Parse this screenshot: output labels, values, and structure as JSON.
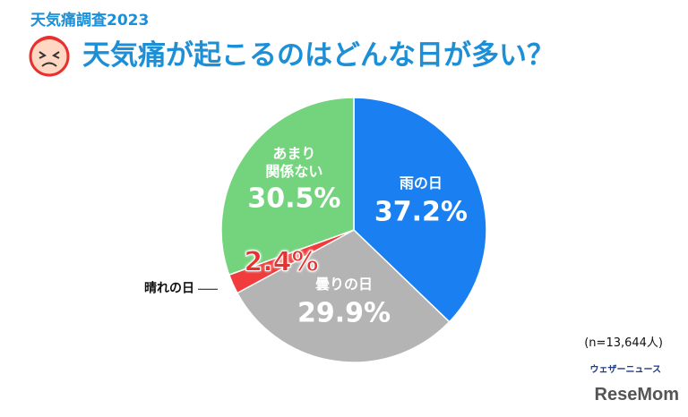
{
  "chart_data": {
    "type": "pie",
    "subtitle": "天気痛調査2023",
    "title": "天気痛が起こるのはどんな日が多い？",
    "categories": [
      "雨の日",
      "曇りの日",
      "晴れの日",
      "あまり\n関係ない"
    ],
    "values": [
      37.2,
      29.9,
      2.4,
      30.5
    ],
    "value_labels": [
      "37.2%",
      "29.9%",
      "2.4%",
      "30.5%"
    ],
    "colors": [
      "#1a7ff0",
      "#b4b4b4",
      "#f03c3c",
      "#74d47e"
    ],
    "note": "(n=13,644人)"
  },
  "source": "ウェザーニュース",
  "brand": "ReseMom"
}
